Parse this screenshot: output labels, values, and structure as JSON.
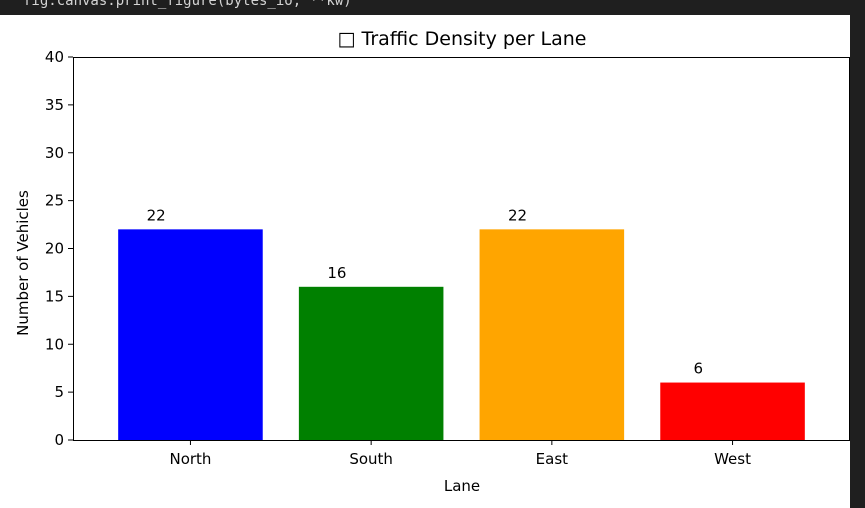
{
  "code_line": "fig.canvas.print_figure(bytes_io, **kw)",
  "chart_data": {
    "type": "bar",
    "title": "□ Traffic Density per Lane",
    "xlabel": "Lane",
    "ylabel": "Number of Vehicles",
    "categories": [
      "North",
      "South",
      "East",
      "West"
    ],
    "values": [
      22,
      16,
      22,
      6
    ],
    "colors": [
      "#0000ff",
      "#008000",
      "#ffa500",
      "#ff0000"
    ],
    "ylim": [
      0,
      40
    ],
    "yticks": [
      0,
      5,
      10,
      15,
      20,
      25,
      30,
      35,
      40
    ],
    "grid": false,
    "data_labels": true
  }
}
